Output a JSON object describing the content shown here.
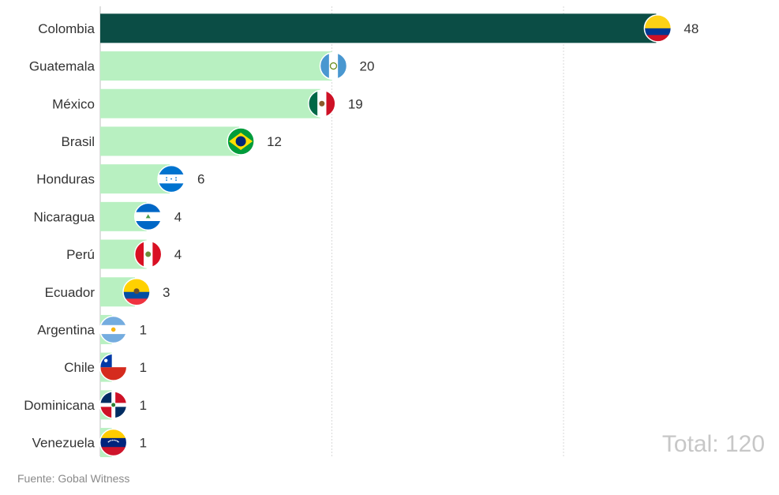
{
  "chart_data": {
    "type": "bar",
    "orientation": "horizontal",
    "categories": [
      "Colombia",
      "Guatemala",
      "México",
      "Brasil",
      "Honduras",
      "Nicaragua",
      "Perú",
      "Ecuador",
      "Argentina",
      "Chile",
      "Dominicana",
      "Venezuela"
    ],
    "values": [
      48,
      20,
      19,
      12,
      6,
      4,
      4,
      3,
      1,
      1,
      1,
      1
    ],
    "flags": [
      "colombia-flag-icon",
      "guatemala-flag-icon",
      "mexico-flag-icon",
      "brazil-flag-icon",
      "honduras-flag-icon",
      "nicaragua-flag-icon",
      "peru-flag-icon",
      "ecuador-flag-icon",
      "argentina-flag-icon",
      "chile-flag-icon",
      "dominican-republic-flag-icon",
      "venezuela-flag-icon"
    ],
    "xlim": [
      0,
      60
    ],
    "grid": true,
    "colors": {
      "highlight": "#0b4d45",
      "bar": "#b8f0c1",
      "grid": "#d9d9d9"
    }
  },
  "total_label": "Total: 120",
  "source": "Fuente: Gobal Witness"
}
